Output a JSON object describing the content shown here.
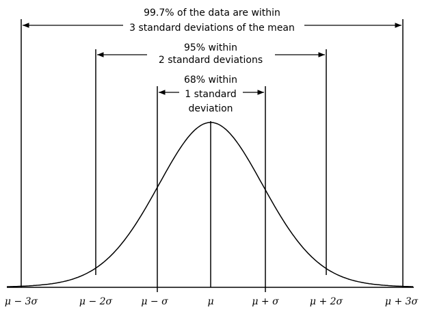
{
  "annotations": [
    {
      "lines": [
        "99.7% of the data are within",
        "3 standard deviations of the mean"
      ]
    },
    {
      "lines": [
        "95% within",
        "2 standard deviations"
      ]
    },
    {
      "lines": [
        "68% within",
        "1 standard",
        "deviation"
      ]
    }
  ],
  "axis_labels": [
    "μ − 3σ",
    "μ − 2σ",
    "μ − σ",
    "μ",
    "μ + σ",
    "μ + 2σ",
    "μ + 3σ"
  ]
}
